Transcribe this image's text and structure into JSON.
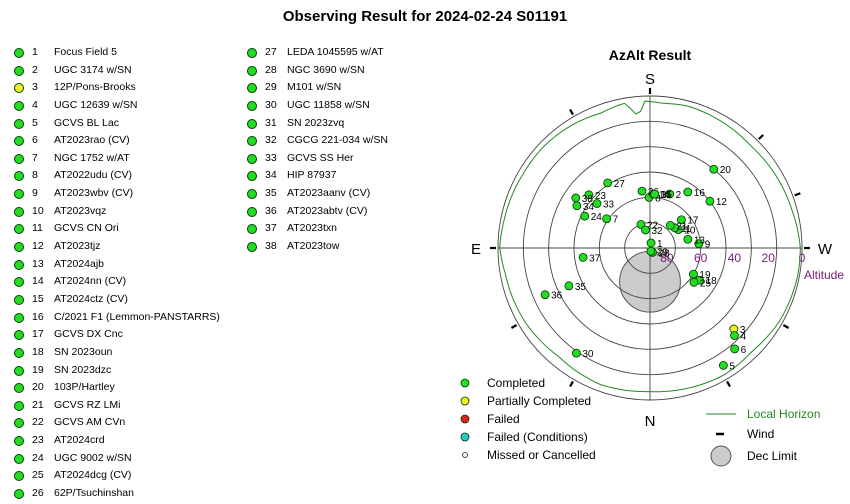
{
  "title": "Observing Result for 2024-02-24 S01191",
  "colors": {
    "completed": "#22dd22",
    "partial": "#eeee22",
    "failed": "#dd2222",
    "failed_conditions": "#22cccc",
    "horizon": "#228822",
    "dec_limit": "#cccccc"
  },
  "targets": [
    {
      "num": "1",
      "name": "Focus Field 5",
      "status": "completed"
    },
    {
      "num": "2",
      "name": "UGC 3174 w/SN",
      "status": "completed"
    },
    {
      "num": "3",
      "name": "12P/Pons-Brooks",
      "status": "partial"
    },
    {
      "num": "4",
      "name": "UGC 12639 w/SN",
      "status": "completed"
    },
    {
      "num": "5",
      "name": "GCVS BL Lac",
      "status": "completed"
    },
    {
      "num": "6",
      "name": "AT2023rao (CV)",
      "status": "completed"
    },
    {
      "num": "7",
      "name": "NGC 1752 w/AT",
      "status": "completed"
    },
    {
      "num": "8",
      "name": "AT2022udu (CV)",
      "status": "completed"
    },
    {
      "num": "9",
      "name": "AT2023wbv (CV)",
      "status": "completed"
    },
    {
      "num": "10",
      "name": "AT2023vqz",
      "status": "completed"
    },
    {
      "num": "11",
      "name": "GCVS CN Ori",
      "status": "completed"
    },
    {
      "num": "12",
      "name": "AT2023tjz",
      "status": "completed"
    },
    {
      "num": "13",
      "name": "AT2024ajb",
      "status": "completed"
    },
    {
      "num": "14",
      "name": "AT2024nn (CV)",
      "status": "completed"
    },
    {
      "num": "15",
      "name": "AT2024ctz (CV)",
      "status": "completed"
    },
    {
      "num": "16",
      "name": "C/2021 F1 (Lemmon-PANSTARRS)",
      "status": "completed"
    },
    {
      "num": "17",
      "name": "GCVS DX Cnc",
      "status": "completed"
    },
    {
      "num": "18",
      "name": "SN 2023oun",
      "status": "completed"
    },
    {
      "num": "19",
      "name": "SN 2023dzc",
      "status": "completed"
    },
    {
      "num": "20",
      "name": "103P/Hartley",
      "status": "completed"
    },
    {
      "num": "21",
      "name": "GCVS RZ LMi",
      "status": "completed"
    },
    {
      "num": "22",
      "name": "GCVS AM CVn",
      "status": "completed"
    },
    {
      "num": "23",
      "name": "AT2024crd",
      "status": "completed"
    },
    {
      "num": "24",
      "name": "UGC 9002 w/SN",
      "status": "completed"
    },
    {
      "num": "25",
      "name": "AT2024dcg (CV)",
      "status": "completed"
    },
    {
      "num": "26",
      "name": "62P/Tsuchinshan",
      "status": "completed"
    },
    {
      "num": "27",
      "name": "LEDA 1045595 w/AT",
      "status": "completed"
    },
    {
      "num": "28",
      "name": "NGC 3690 w/SN",
      "status": "completed"
    },
    {
      "num": "29",
      "name": "M101 w/SN",
      "status": "completed"
    },
    {
      "num": "30",
      "name": "UGC 11858 w/SN",
      "status": "completed"
    },
    {
      "num": "31",
      "name": "SN 2023zvq",
      "status": "completed"
    },
    {
      "num": "32",
      "name": "CGCG 221-034 w/SN",
      "status": "completed"
    },
    {
      "num": "33",
      "name": "GCVS SS Her",
      "status": "completed"
    },
    {
      "num": "34",
      "name": "HIP 87937",
      "status": "completed"
    },
    {
      "num": "35",
      "name": "AT2023aanv (CV)",
      "status": "completed"
    },
    {
      "num": "36",
      "name": "AT2023abtv (CV)",
      "status": "completed"
    },
    {
      "num": "37",
      "name": "AT2023txn",
      "status": "completed"
    },
    {
      "num": "38",
      "name": "AT2023tow",
      "status": "completed"
    }
  ],
  "chart_data": {
    "type": "scatter",
    "projection": "polar-azalt",
    "title": "AzAlt Result",
    "directions": {
      "top": "S",
      "bottom": "N",
      "left": "E",
      "right": "W"
    },
    "radial_axis_label": "Altitude",
    "radial_ticks": [
      "80",
      "60",
      "40",
      "20",
      "0"
    ],
    "radial_ticks_values": [
      80,
      60,
      40,
      20,
      0
    ],
    "rings_alt": [
      75,
      60,
      45,
      30,
      15,
      0
    ],
    "points": [
      {
        "label": "1",
        "az": 192,
        "alt": 87,
        "status": "completed"
      },
      {
        "label": "2",
        "az": 200,
        "alt": 56,
        "status": "completed"
      },
      {
        "label": "3",
        "az": 314,
        "alt": 21,
        "status": "partial"
      },
      {
        "label": "4",
        "az": 316,
        "alt": 18,
        "status": "completed"
      },
      {
        "label": "5",
        "az": 328,
        "alt": 8,
        "status": "completed"
      },
      {
        "label": "6",
        "az": 320,
        "alt": 12,
        "status": "completed"
      },
      {
        "label": "7",
        "az": 124,
        "alt": 59,
        "status": "completed"
      },
      {
        "label": "8",
        "az": 179,
        "alt": 60,
        "status": "completed"
      },
      {
        "label": "9",
        "az": 265,
        "alt": 61,
        "status": "completed"
      },
      {
        "label": "10",
        "az": 237,
        "alt": 70,
        "status": "completed"
      },
      {
        "label": "11",
        "az": 231,
        "alt": 71,
        "status": "completed"
      },
      {
        "label": "12",
        "az": 232,
        "alt": 45,
        "status": "completed"
      },
      {
        "label": "13",
        "az": 257,
        "alt": 67,
        "status": "completed"
      },
      {
        "label": "14",
        "az": 183,
        "alt": 58,
        "status": "completed"
      },
      {
        "label": "15",
        "az": 185,
        "alt": 58,
        "status": "completed"
      },
      {
        "label": "16",
        "az": 214,
        "alt": 50,
        "status": "completed"
      },
      {
        "label": "17",
        "az": 228,
        "alt": 65,
        "status": "completed"
      },
      {
        "label": "18",
        "az": 303,
        "alt": 55,
        "status": "completed"
      },
      {
        "label": "19",
        "az": 301,
        "alt": 60,
        "status": "completed"
      },
      {
        "label": "20",
        "az": 219,
        "alt": 30,
        "status": "completed"
      },
      {
        "label": "21",
        "az": 222,
        "alt": 72,
        "status": "completed"
      },
      {
        "label": "22",
        "az": 159,
        "alt": 75,
        "status": "completed"
      },
      {
        "label": "23",
        "az": 131,
        "alt": 42,
        "status": "completed"
      },
      {
        "label": "24",
        "az": 116,
        "alt": 47,
        "status": "completed"
      },
      {
        "label": "25",
        "az": 308,
        "alt": 57,
        "status": "completed"
      },
      {
        "label": "26",
        "az": 172,
        "alt": 56,
        "status": "completed"
      },
      {
        "label": "27",
        "az": 147,
        "alt": 44,
        "status": "completed"
      },
      {
        "label": "28",
        "az": 330,
        "alt": 87,
        "status": "completed"
      },
      {
        "label": "29",
        "az": 345,
        "alt": 88,
        "status": "completed"
      },
      {
        "label": "30",
        "az": 35,
        "alt": 14,
        "status": "completed"
      },
      {
        "label": "31",
        "az": 185,
        "alt": 58,
        "status": "completed"
      },
      {
        "label": "32",
        "az": 166,
        "alt": 79,
        "status": "completed"
      },
      {
        "label": "33",
        "az": 130,
        "alt": 49,
        "status": "completed"
      },
      {
        "label": "34",
        "az": 120,
        "alt": 40,
        "status": "completed"
      },
      {
        "label": "35",
        "az": 65,
        "alt": 37,
        "status": "completed"
      },
      {
        "label": "36",
        "az": 66,
        "alt": 22,
        "status": "completed"
      },
      {
        "label": "37",
        "az": 82,
        "alt": 50,
        "status": "completed"
      },
      {
        "label": "38",
        "az": 124,
        "alt": 37,
        "status": "completed"
      }
    ],
    "horizon_alt_by_az": [
      [
        0,
        5
      ],
      [
        20,
        4
      ],
      [
        40,
        6
      ],
      [
        60,
        4
      ],
      [
        80,
        3
      ],
      [
        90,
        1
      ],
      [
        100,
        2
      ],
      [
        120,
        3
      ],
      [
        135,
        3
      ],
      [
        150,
        4
      ],
      [
        160,
        5
      ],
      [
        170,
        3
      ],
      [
        175,
        12
      ],
      [
        178,
        3
      ],
      [
        185,
        4
      ],
      [
        195,
        3
      ],
      [
        210,
        4
      ],
      [
        225,
        5
      ],
      [
        240,
        4
      ],
      [
        255,
        3
      ],
      [
        270,
        1
      ],
      [
        280,
        1
      ],
      [
        300,
        2
      ],
      [
        315,
        4
      ],
      [
        330,
        3
      ],
      [
        345,
        4
      ],
      [
        360,
        5
      ]
    ],
    "wind_az": [
      30,
      60,
      90,
      150,
      180,
      225,
      250,
      270,
      300,
      330
    ],
    "dec_limit": {
      "az": 0,
      "alt": 70,
      "radius_deg": 18
    },
    "legend": [
      {
        "label": "Completed",
        "status": "completed"
      },
      {
        "label": "Partially Completed",
        "status": "partial"
      },
      {
        "label": "Failed",
        "status": "failed"
      },
      {
        "label": "Failed (Conditions)",
        "status": "failed_conditions"
      },
      {
        "label": "Missed or Cancelled",
        "status": "missed"
      },
      {
        "label": "Local Horizon",
        "status": "horizon"
      },
      {
        "label": "Wind",
        "status": "wind"
      },
      {
        "label": "Dec Limit",
        "status": "dec_limit"
      }
    ]
  }
}
